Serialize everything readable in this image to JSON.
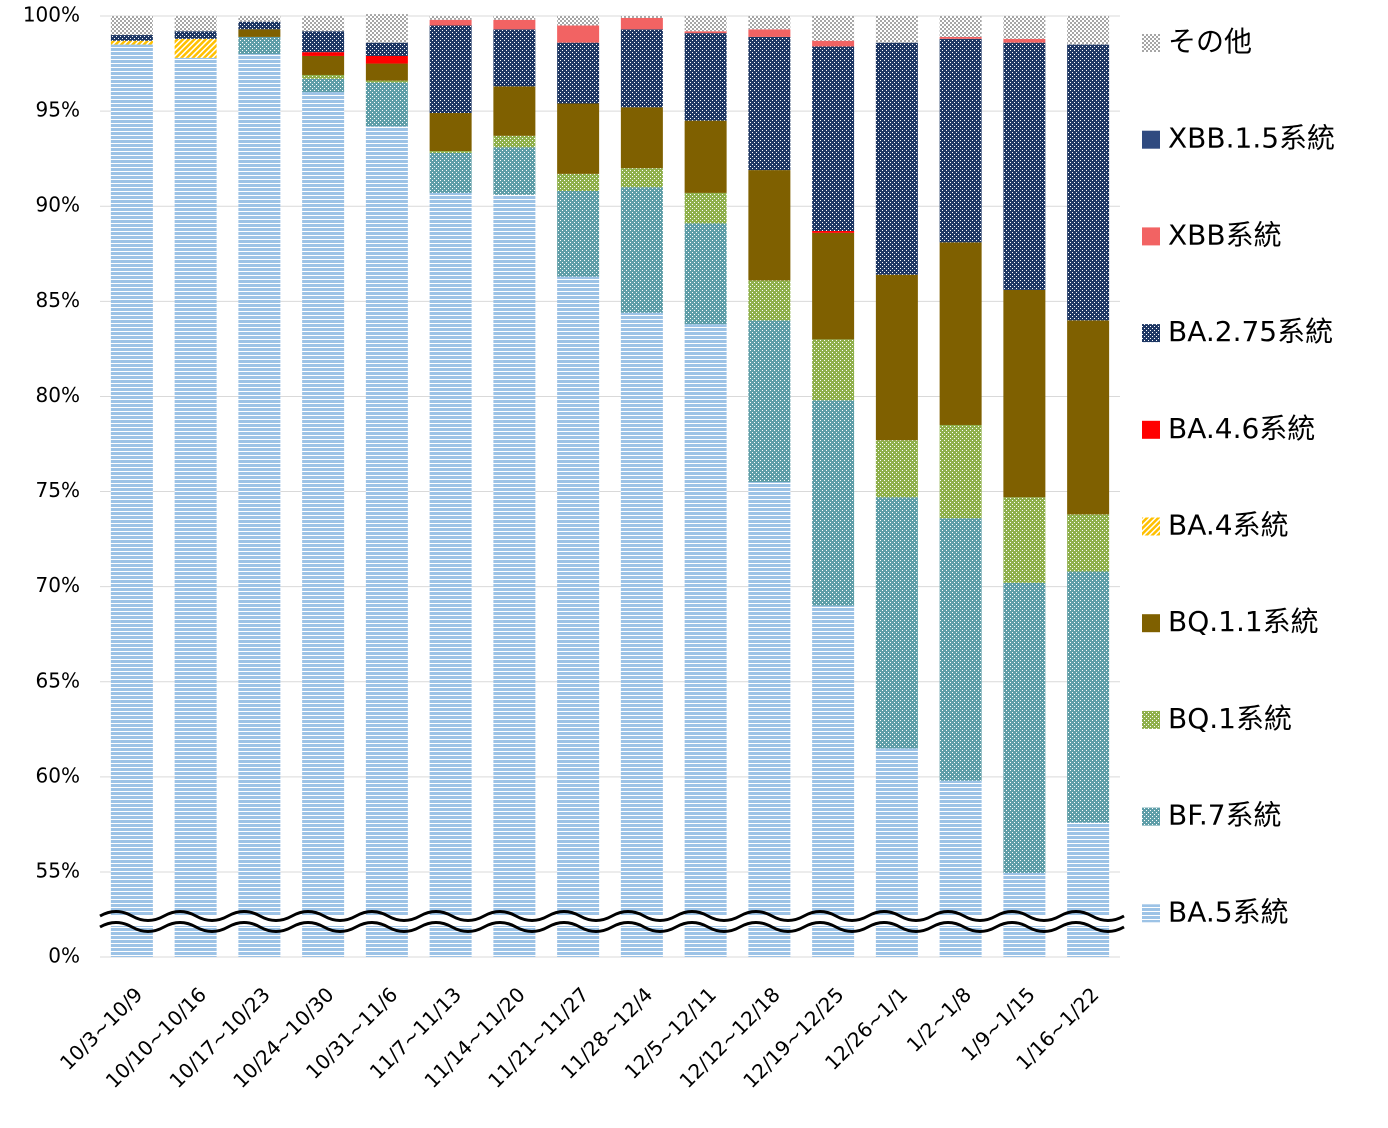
{
  "chart_data": {
    "type": "stacked-bar",
    "categories": [
      "10/3~10/9",
      "10/10~10/16",
      "10/17~10/23",
      "10/24~10/30",
      "10/31~11/6",
      "11/7~11/13",
      "11/14~11/20",
      "11/21~11/27",
      "11/28~12/4",
      "12/5~12/11",
      "12/12~12/18",
      "12/19~12/25",
      "12/26~1/1",
      "1/2~1/8",
      "1/9~1/15",
      "1/16~1/22"
    ],
    "series": [
      {
        "name": "BA.5系統",
        "color": "#9dc3e6",
        "pattern": "horizontal",
        "values": [
          98.5,
          97.8,
          98.0,
          96.0,
          94.2,
          90.7,
          90.6,
          86.3,
          84.4,
          83.8,
          75.5,
          69.0,
          61.5,
          59.8,
          54.4,
          57.6
        ]
      },
      {
        "name": "BF.7系統",
        "color": "#5f9ea8",
        "pattern": "dots",
        "values": [
          0,
          0,
          0.9,
          0.7,
          2.3,
          2.1,
          2.5,
          4.5,
          6.6,
          5.3,
          8.5,
          10.8,
          13.2,
          13.8,
          15.8,
          13.2
        ]
      },
      {
        "name": "BQ.1系統",
        "color": "#8fb04c",
        "pattern": "dots",
        "values": [
          0,
          0,
          0,
          0.2,
          0.1,
          0.1,
          0.6,
          0.9,
          1.0,
          1.6,
          2.1,
          3.2,
          3.0,
          4.9,
          4.5,
          3.0
        ]
      },
      {
        "name": "BQ.1.1系統",
        "color": "#7f6000",
        "pattern": "solid",
        "values": [
          0,
          0,
          0.4,
          1.0,
          0.9,
          2.0,
          2.6,
          3.7,
          3.2,
          3.8,
          5.8,
          5.6,
          8.7,
          9.6,
          10.9,
          10.2
        ]
      },
      {
        "name": "BA.4系統",
        "color": "#ffc000",
        "pattern": "diagonal",
        "values": [
          0.2,
          1.0,
          0,
          0,
          0,
          0,
          0,
          0,
          0,
          0,
          0,
          0,
          0,
          0,
          0,
          0
        ]
      },
      {
        "name": "BA.4.6系統",
        "color": "#ff0000",
        "pattern": "solid",
        "values": [
          0,
          0,
          0,
          0.2,
          0.4,
          0,
          0,
          0,
          0,
          0,
          0,
          0.1,
          0,
          0,
          0,
          0
        ]
      },
      {
        "name": "BA.2.75系統",
        "color": "#1f3864",
        "pattern": "dots",
        "values": [
          0.3,
          0.4,
          0.4,
          1.1,
          0.7,
          4.6,
          3.0,
          3.2,
          4.1,
          4.6,
          7.0,
          9.7,
          12.2,
          10.7,
          13.0,
          14.5
        ]
      },
      {
        "name": "XBB系統",
        "color": "#f26363",
        "pattern": "solid",
        "values": [
          0,
          0,
          0,
          0,
          0,
          0.3,
          0.5,
          0.9,
          0.6,
          0.1,
          0.4,
          0.3,
          0,
          0.1,
          0.2,
          0
        ]
      },
      {
        "name": "XBB.1.5系統",
        "color": "#2f4a80",
        "pattern": "solid",
        "values": [
          0,
          0,
          0,
          0,
          0,
          0,
          0,
          0,
          0,
          0,
          0,
          0,
          0,
          0,
          0,
          0
        ]
      },
      {
        "name": "その他",
        "color": "#a6a6a6",
        "pattern": "dots-light",
        "values": [
          1.0,
          0.8,
          0.3,
          0.8,
          1.5,
          0.2,
          0.2,
          0.5,
          0.1,
          0.8,
          0.7,
          1.3,
          1.4,
          1.1,
          1.2,
          1.5
        ]
      }
    ],
    "ylim": [
      0,
      100
    ],
    "axis_break": [
      0,
      55
    ],
    "yticks": [
      {
        "value": 0,
        "label": "0%"
      },
      {
        "value": 55,
        "label": "55%"
      },
      {
        "value": 60,
        "label": "60%"
      },
      {
        "value": 65,
        "label": "65%"
      },
      {
        "value": 70,
        "label": "70%"
      },
      {
        "value": 75,
        "label": "75%"
      },
      {
        "value": 80,
        "label": "80%"
      },
      {
        "value": 85,
        "label": "85%"
      },
      {
        "value": 90,
        "label": "90%"
      },
      {
        "value": 95,
        "label": "95%"
      },
      {
        "value": 100,
        "label": "100%"
      }
    ],
    "grid": true,
    "legend": "right"
  }
}
